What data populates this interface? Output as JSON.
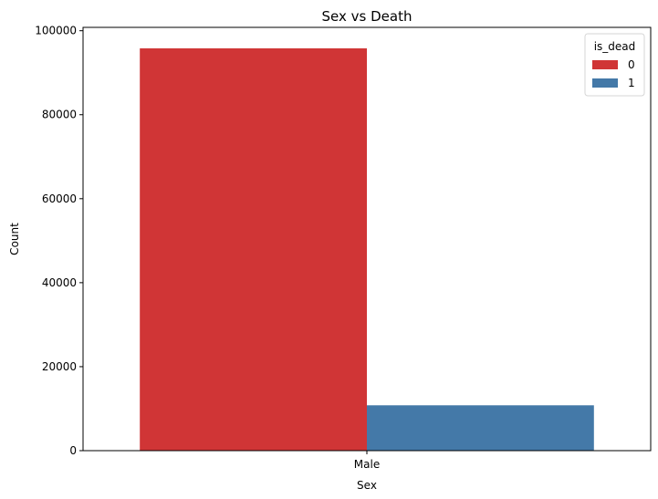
{
  "chart_data": {
    "type": "bar",
    "title": "Sex vs Death",
    "xlabel": "Sex",
    "ylabel": "Count",
    "categories": [
      "Male"
    ],
    "ylim": [
      0,
      100800
    ],
    "yticks": [
      0,
      20000,
      40000,
      60000,
      80000,
      100000
    ],
    "grid": false,
    "legend": {
      "title": "is_dead",
      "placement": "top-right",
      "entries": [
        "0",
        "1"
      ]
    },
    "series": [
      {
        "name": "0",
        "values": [
          95800
        ],
        "color": "#d03536"
      },
      {
        "name": "1",
        "values": [
          10800
        ],
        "color": "#4479a8"
      }
    ]
  }
}
